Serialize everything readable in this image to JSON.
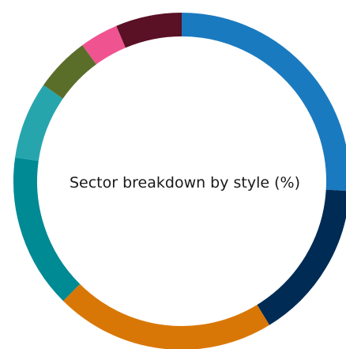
{
  "chart_data": {
    "type": "pie",
    "title": "Sector breakdown by style (%)",
    "slices": [
      {
        "value": 24.5,
        "color": "#1a7abf"
      },
      {
        "value": 14.5,
        "color": "#002b55"
      },
      {
        "value": 20.0,
        "color": "#d97706"
      },
      {
        "value": 14.0,
        "color": "#008a94"
      },
      {
        "value": 7.0,
        "color": "#27a5ad"
      },
      {
        "value": 5.0,
        "color": "#5a6e2a"
      },
      {
        "value": 3.5,
        "color": "#ef5490"
      },
      {
        "value": 6.0,
        "color": "#5a1025"
      }
    ]
  }
}
